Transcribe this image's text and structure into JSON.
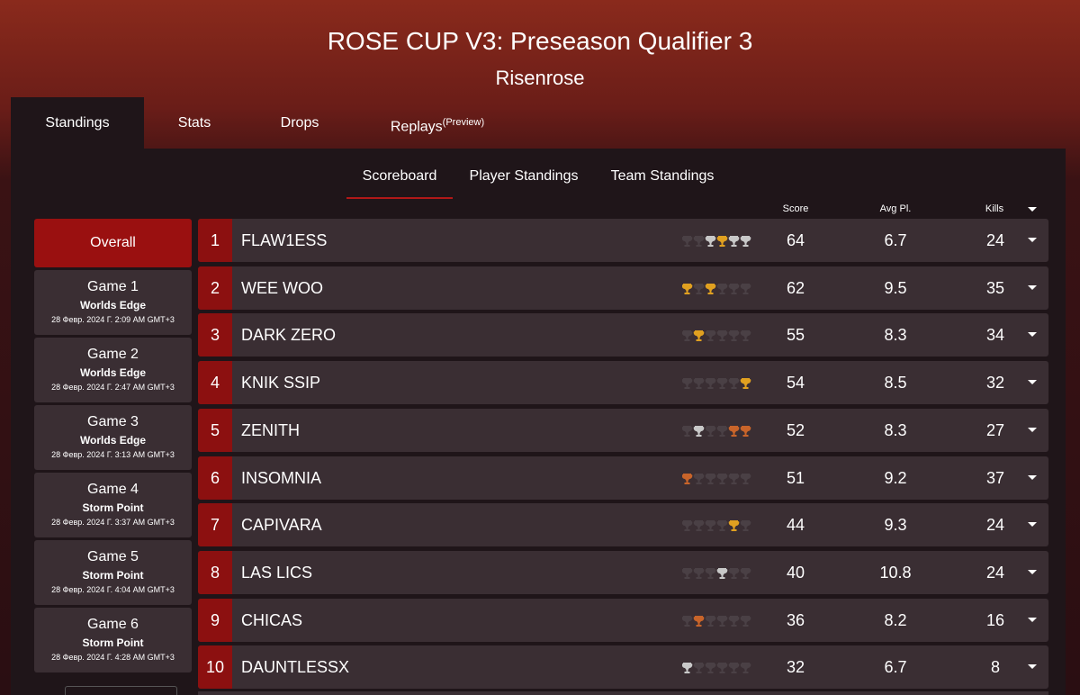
{
  "header": {
    "title": "ROSE CUP V3: Preseason Qualifier 3",
    "subtitle": "Risenrose"
  },
  "tabs": [
    {
      "label": "Standings"
    },
    {
      "label": "Stats"
    },
    {
      "label": "Drops"
    },
    {
      "label": "Replays",
      "note": "(Preview)"
    }
  ],
  "subtabs": [
    "Scoreboard",
    "Player Standings",
    "Team Standings"
  ],
  "columns": [
    "Score",
    "Avg Pl.",
    "Kills"
  ],
  "games": [
    {
      "title": "Overall"
    },
    {
      "title": "Game 1",
      "map": "Worlds Edge",
      "date": "28 Февр. 2024 Г. 2:09 AM GMT+3"
    },
    {
      "title": "Game 2",
      "map": "Worlds Edge",
      "date": "28 Февр. 2024 Г. 2:47 AM GMT+3"
    },
    {
      "title": "Game 3",
      "map": "Worlds Edge",
      "date": "28 Февр. 2024 Г. 3:13 AM GMT+3"
    },
    {
      "title": "Game 4",
      "map": "Storm Point",
      "date": "28 Февр. 2024 Г. 3:37 AM GMT+3"
    },
    {
      "title": "Game 5",
      "map": "Storm Point",
      "date": "28 Февр. 2024 Г. 4:04 AM GMT+3"
    },
    {
      "title": "Game 6",
      "map": "Storm Point",
      "date": "28 Февр. 2024 Г. 4:28 AM GMT+3"
    }
  ],
  "rows": [
    {
      "rank": 1,
      "team": "FLAW1ESS",
      "score": 64,
      "avg": 6.7,
      "kills": 24,
      "trophies": [
        "#4a4045",
        "#4a4045",
        "#c8c8c8",
        "#e0a020",
        "#c8c8c8",
        "#c8c8c8"
      ]
    },
    {
      "rank": 2,
      "team": "WEE WOO",
      "score": 62,
      "avg": 9.5,
      "kills": 35,
      "trophies": [
        "#e0a020",
        "#4a4045",
        "#e0a020",
        "#4a4045",
        "#4a4045",
        "#4a4045"
      ]
    },
    {
      "rank": 3,
      "team": "DARK ZERO",
      "score": 55,
      "avg": 8.3,
      "kills": 34,
      "trophies": [
        "#4a4045",
        "#e0a020",
        "#4a4045",
        "#4a4045",
        "#4a4045",
        "#4a4045"
      ]
    },
    {
      "rank": 4,
      "team": "KNIK SSIP",
      "score": 54,
      "avg": 8.5,
      "kills": 32,
      "trophies": [
        "#4a4045",
        "#4a4045",
        "#4a4045",
        "#4a4045",
        "#4a4045",
        "#e0a020"
      ]
    },
    {
      "rank": 5,
      "team": "ZENITH",
      "score": 52,
      "avg": 8.3,
      "kills": 27,
      "trophies": [
        "#4a4045",
        "#c8c8c8",
        "#4a4045",
        "#4a4045",
        "#c8642a",
        "#c8642a"
      ]
    },
    {
      "rank": 6,
      "team": "INSOMNIA",
      "score": 51,
      "avg": 9.2,
      "kills": 37,
      "trophies": [
        "#c8642a",
        "#4a4045",
        "#4a4045",
        "#4a4045",
        "#4a4045",
        "#4a4045"
      ]
    },
    {
      "rank": 7,
      "team": "CAPIVARA",
      "score": 44,
      "avg": 9.3,
      "kills": 24,
      "trophies": [
        "#4a4045",
        "#4a4045",
        "#4a4045",
        "#4a4045",
        "#e0a020",
        "#4a4045"
      ]
    },
    {
      "rank": 8,
      "team": "LAS LICS",
      "score": 40,
      "avg": 10.8,
      "kills": 24,
      "trophies": [
        "#4a4045",
        "#4a4045",
        "#4a4045",
        "#c8c8c8",
        "#4a4045",
        "#4a4045"
      ]
    },
    {
      "rank": 9,
      "team": "CHICAS",
      "score": 36,
      "avg": 8.2,
      "kills": 16,
      "trophies": [
        "#4a4045",
        "#c8642a",
        "#4a4045",
        "#4a4045",
        "#4a4045",
        "#4a4045"
      ]
    },
    {
      "rank": 10,
      "team": "DAUNTLESSX",
      "score": 32,
      "avg": 6.7,
      "kills": 8,
      "trophies": [
        "#c8c8c8",
        "#4a4045",
        "#4a4045",
        "#4a4045",
        "#4a4045",
        "#4a4045"
      ]
    }
  ]
}
